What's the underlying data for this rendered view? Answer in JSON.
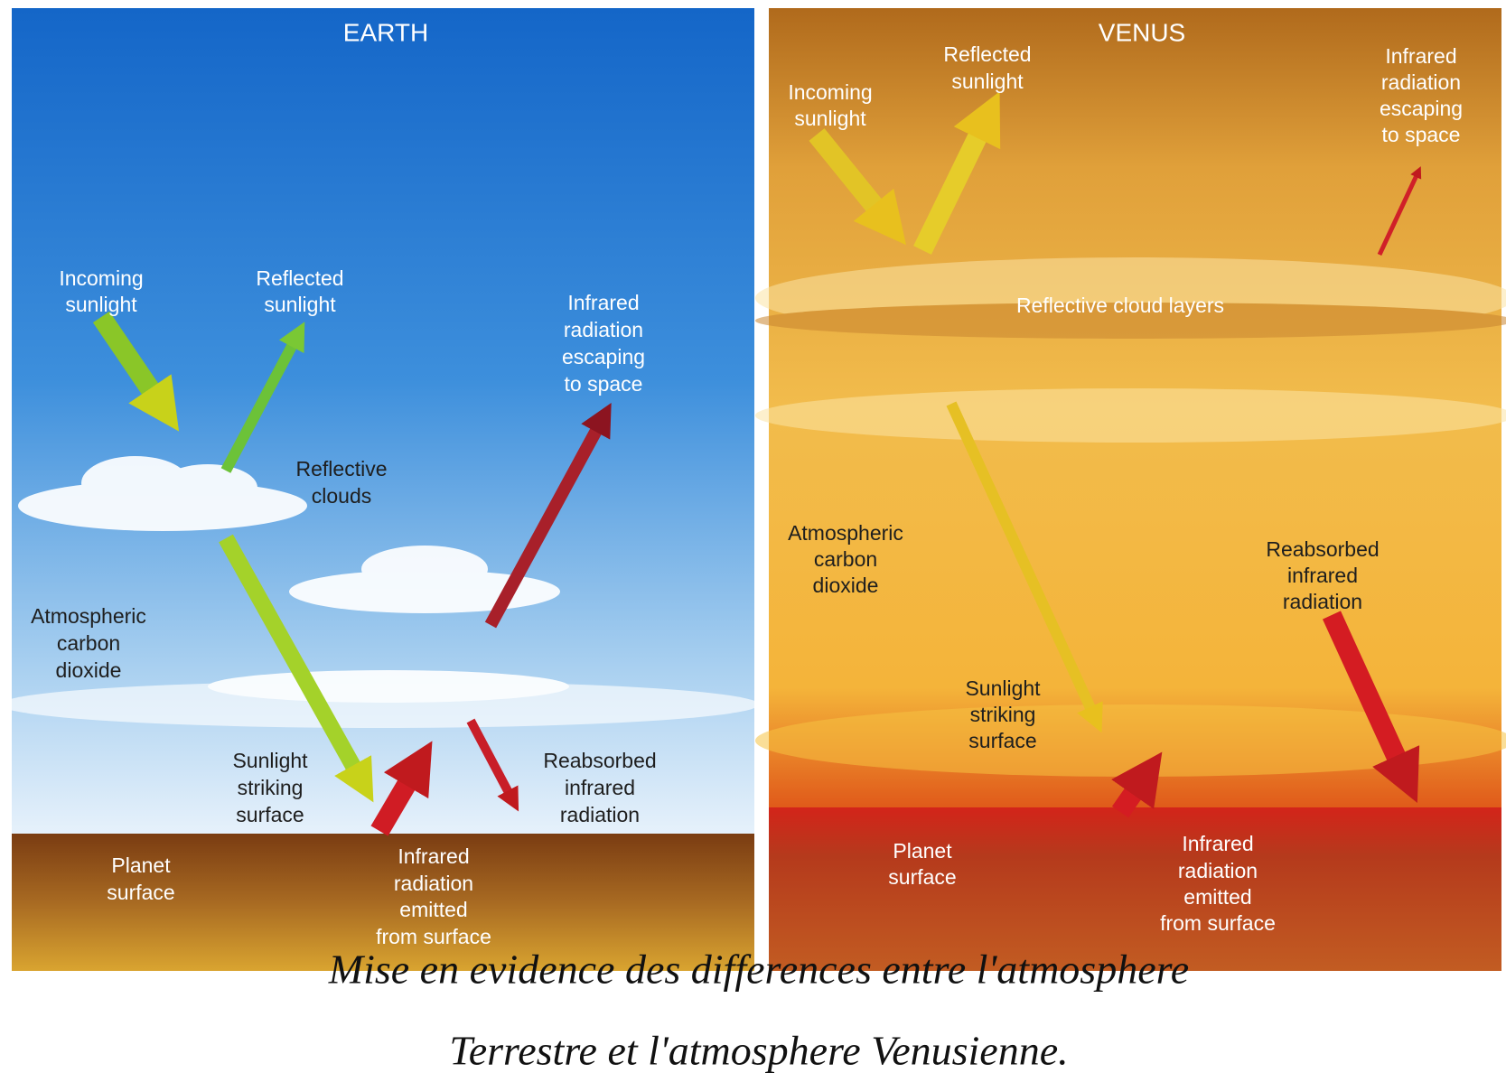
{
  "earth": {
    "title": "EARTH",
    "incoming_sunlight": [
      "Incoming",
      "sunlight"
    ],
    "reflected_sunlight": [
      "Reflected",
      "sunlight"
    ],
    "infrared_escaping": [
      "Infrared",
      "radiation",
      "escaping",
      "to space"
    ],
    "reflective_clouds": [
      "Reflective",
      "clouds"
    ],
    "atmospheric_co2": [
      "Atmospheric",
      "carbon",
      "dioxide"
    ],
    "sunlight_striking": [
      "Sunlight",
      "striking",
      "surface"
    ],
    "reabsorbed_infrared": [
      "Reabsorbed",
      "infrared",
      "radiation"
    ],
    "planet_surface": [
      "Planet",
      "surface"
    ],
    "infrared_emitted": [
      "Infrared",
      "radiation",
      "emitted",
      "from surface"
    ]
  },
  "venus": {
    "title": "VENUS",
    "incoming_sunlight": [
      "Incoming",
      "sunlight"
    ],
    "reflected_sunlight": [
      "Reflected",
      "sunlight"
    ],
    "infrared_escaping": [
      "Infrared",
      "radiation",
      "escaping",
      "to space"
    ],
    "reflective_cloud_layers": "Reflective cloud layers",
    "atmospheric_co2": [
      "Atmospheric",
      "carbon",
      "dioxide"
    ],
    "reabsorbed_infrared": [
      "Reabsorbed",
      "infrared",
      "radiation"
    ],
    "sunlight_striking": [
      "Sunlight",
      "striking",
      "surface"
    ],
    "planet_surface": [
      "Planet",
      "surface"
    ],
    "infrared_emitted": [
      "Infrared",
      "radiation",
      "emitted",
      "from surface"
    ]
  },
  "caption": [
    "Mise en evidence des differences entre l'atmosphere",
    "Terrestre et l'atmosphere Venusienne."
  ]
}
